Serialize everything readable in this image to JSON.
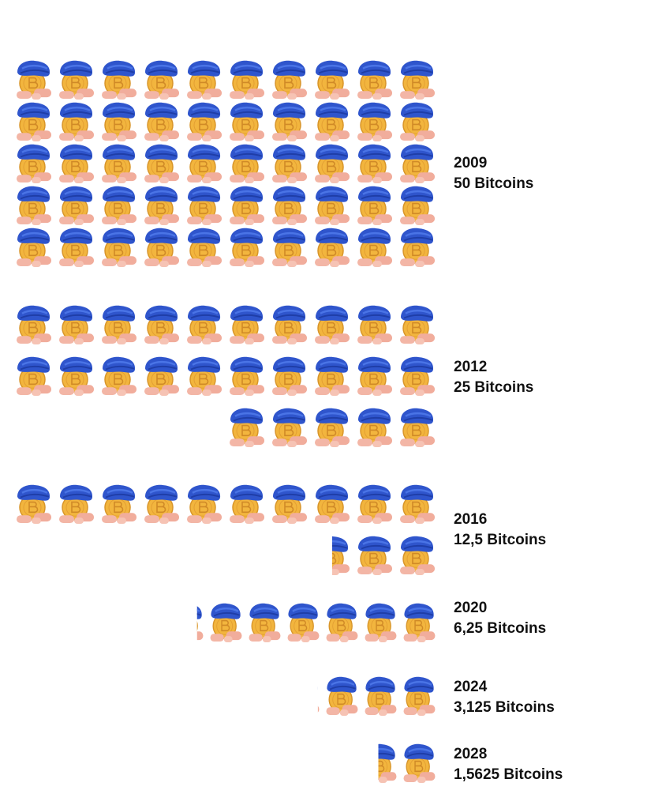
{
  "chart_data": {
    "type": "pictograph",
    "categories": [
      "2009",
      "2012",
      "2016",
      "2020",
      "2024",
      "2028"
    ],
    "values": [
      50,
      25,
      12.5,
      6.25,
      3.125,
      1.5625
    ],
    "value_labels": [
      "50 Bitcoins",
      "25 Bitcoins",
      "12,5 Bitcoins",
      "6,25 Bitcoins",
      "3,125 Bitcoins",
      "1,5625 Bitcoins"
    ]
  }
}
